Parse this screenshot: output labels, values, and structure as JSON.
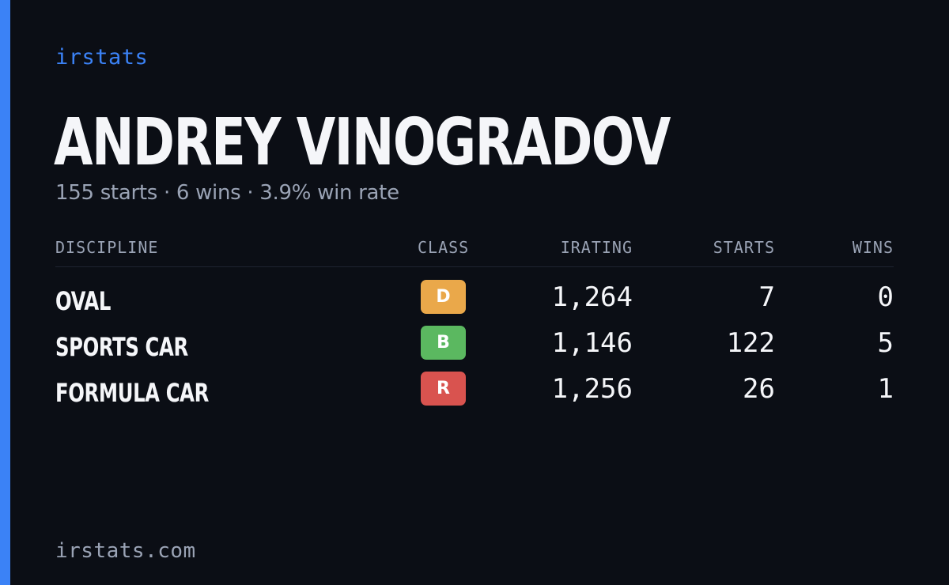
{
  "brand": "irstats",
  "driver": {
    "name": "ANDREY VINOGRADOV",
    "summary": "155 starts · 6 wins · 3.9% win rate"
  },
  "table": {
    "headers": {
      "discipline": "DISCIPLINE",
      "class": "CLASS",
      "irating": "IRATING",
      "starts": "STARTS",
      "wins": "WINS"
    },
    "rows": [
      {
        "discipline": "OVAL",
        "class": "D",
        "class_color": "#eaa84a",
        "irating": "1,264",
        "starts": "7",
        "wins": "0"
      },
      {
        "discipline": "SPORTS CAR",
        "class": "B",
        "class_color": "#5bb860",
        "irating": "1,146",
        "starts": "122",
        "wins": "5"
      },
      {
        "discipline": "FORMULA CAR",
        "class": "R",
        "class_color": "#d9534f",
        "irating": "1,256",
        "starts": "26",
        "wins": "1"
      }
    ]
  },
  "footer": "irstats.com",
  "colors": {
    "accent": "#3b82f6",
    "background": "#0b0e15",
    "muted_text": "#9aa3b5"
  }
}
